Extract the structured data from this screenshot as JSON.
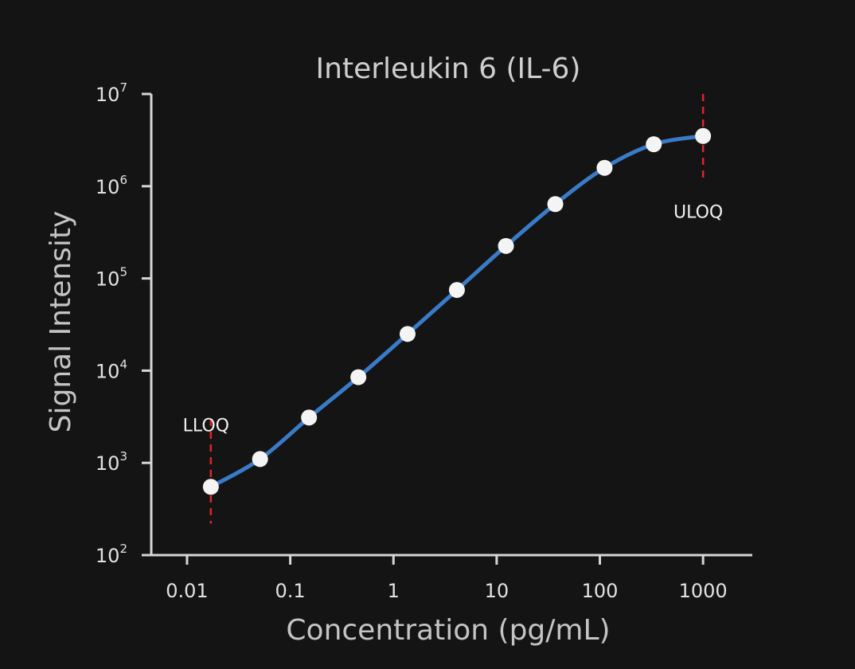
{
  "chart_data": {
    "type": "line",
    "title": "Interleukin 6 (IL-6)",
    "xlabel": "Concentration (pg/mL)",
    "ylabel": "Signal Intensity",
    "x_scale": "log",
    "y_scale": "log",
    "xlim": [
      0.0045,
      3000
    ],
    "ylim": [
      100,
      10000000
    ],
    "x_ticks": [
      {
        "value": 0.01,
        "label": "0.01"
      },
      {
        "value": 0.1,
        "label": "0.1"
      },
      {
        "value": 1,
        "label": "1"
      },
      {
        "value": 10,
        "label": "10"
      },
      {
        "value": 100,
        "label": "100"
      },
      {
        "value": 1000,
        "label": "1000"
      }
    ],
    "y_ticks": [
      {
        "value": 100,
        "base": "10",
        "exp": "2"
      },
      {
        "value": 1000,
        "base": "10",
        "exp": "3"
      },
      {
        "value": 10000,
        "base": "10",
        "exp": "4"
      },
      {
        "value": 100000,
        "base": "10",
        "exp": "5"
      },
      {
        "value": 1000000,
        "base": "10",
        "exp": "6"
      },
      {
        "value": 10000000,
        "base": "10",
        "exp": "7"
      }
    ],
    "series": [
      {
        "color": "#3a7bc8",
        "x": [
          0.017,
          0.051,
          0.152,
          0.457,
          1.37,
          4.12,
          12.3,
          37.0,
          111,
          333,
          1000
        ],
        "y": [
          550,
          1100,
          3100,
          8500,
          25000,
          75000,
          225000,
          640000,
          1580000,
          2850000,
          3500000
        ]
      }
    ],
    "annotations": [
      {
        "label": "LLOQ",
        "x": 0.017,
        "y_from": 220,
        "y_to": 3000,
        "label_y": 2200,
        "label_side": "above"
      },
      {
        "label": "ULOQ",
        "x": 1000,
        "y_from": 1150000,
        "y_to": 10000000,
        "label_y": 650000,
        "label_side": "below"
      }
    ],
    "grid": false,
    "legend": "none"
  }
}
